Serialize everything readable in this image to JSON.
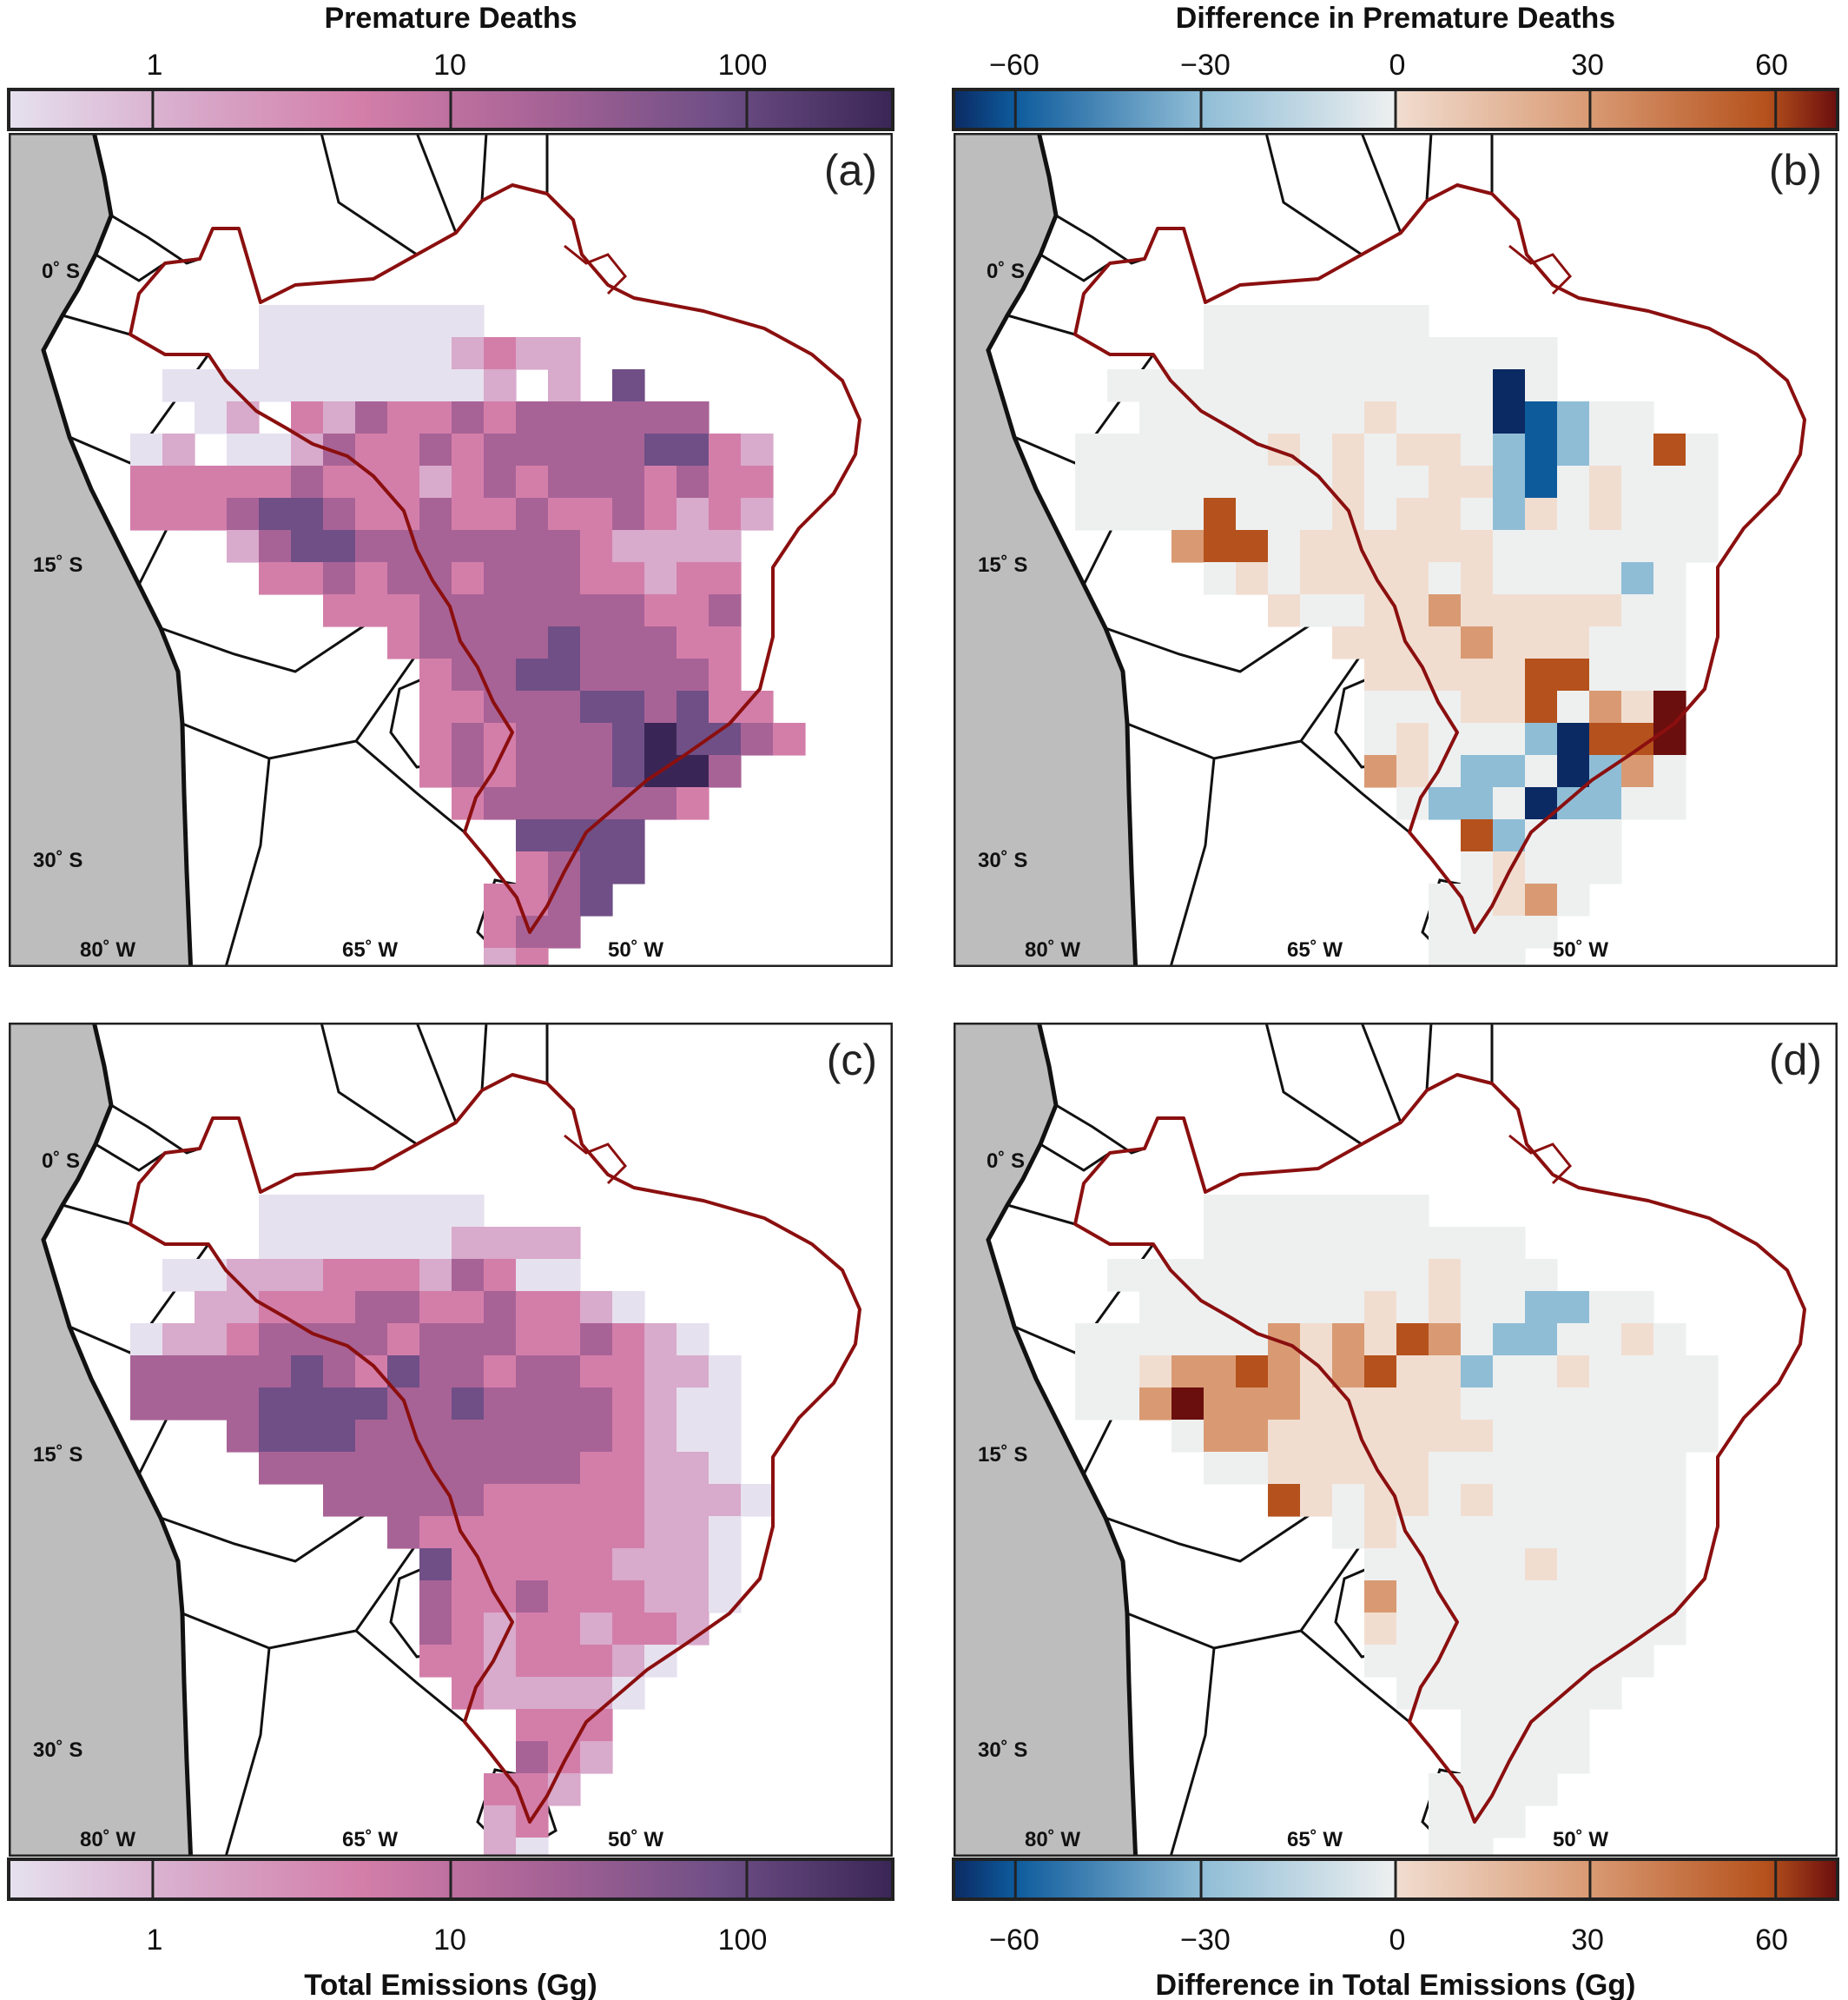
{
  "colorbars": {
    "a": {
      "title": "Premature Deaths",
      "ticks": [
        "1",
        "10",
        "100"
      ]
    },
    "b": {
      "title": "Difference in Premature Deaths",
      "ticks": [
        "−60",
        "−30",
        "0",
        "30",
        "60"
      ]
    },
    "c": {
      "title": "Total Emissions (Gg)",
      "ticks": [
        "1",
        "10",
        "100"
      ]
    },
    "d": {
      "title": "Difference in Total Emissions (Gg)",
      "ticks": [
        "−60",
        "−30",
        "0",
        "30",
        "60"
      ]
    }
  },
  "panels": [
    {
      "id": "a",
      "label": "(a)"
    },
    {
      "id": "b",
      "label": "(b)"
    },
    {
      "id": "c",
      "label": "(c)"
    },
    {
      "id": "d",
      "label": "(d)"
    }
  ],
  "axis": {
    "lat_labels": [
      "0˚ S",
      "15˚ S",
      "30˚ S"
    ],
    "lon_labels": [
      "80˚ W",
      "65˚ W",
      "50˚ W"
    ]
  },
  "colors": {
    "ocean": "#bdbdbd",
    "land": "#ffffff",
    "border": "#8b0f0f",
    "coast": "#111111",
    "seq": [
      "#e6e1ef",
      "#d8aacb",
      "#d37ea9",
      "#a86396",
      "#6f4f86",
      "#3a2656"
    ],
    "div": [
      "#0b2a63",
      "#0e5b9c",
      "#8fbdd6",
      "#eef0f0",
      "#f1ddd0",
      "#d99a73",
      "#b5511c",
      "#6b0e0e"
    ]
  }
}
